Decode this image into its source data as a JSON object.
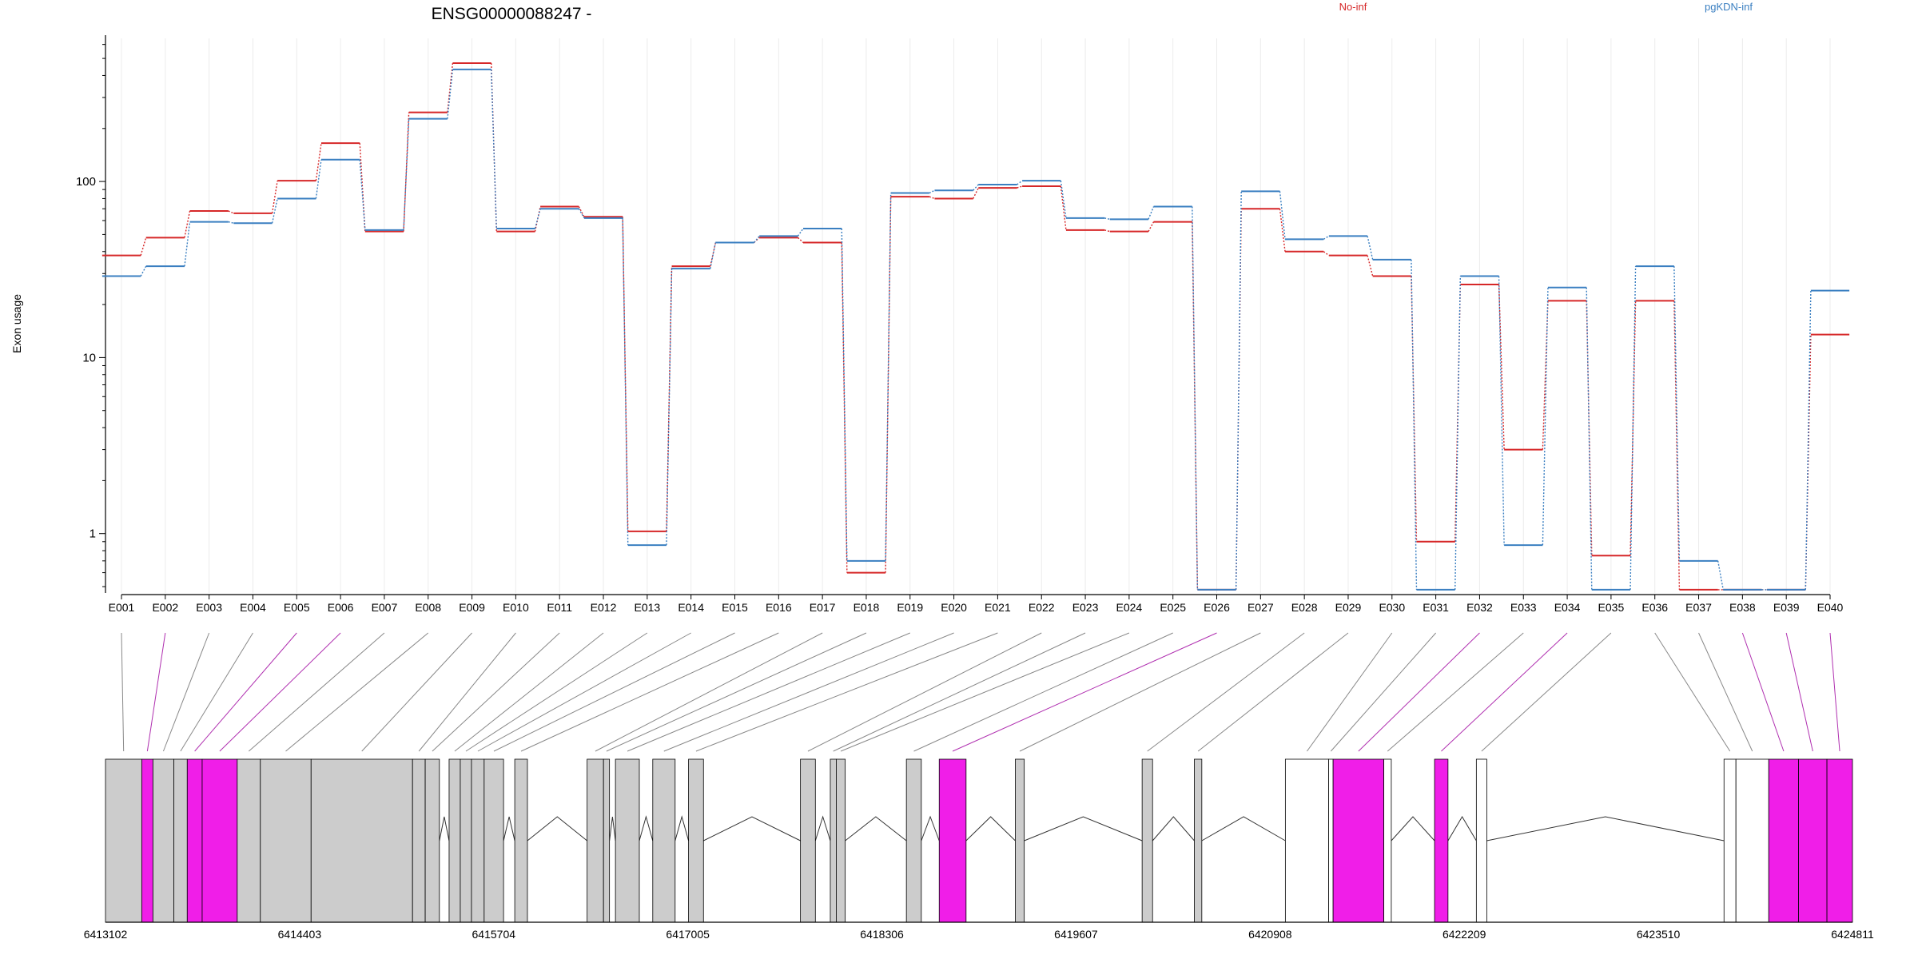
{
  "chart_data": {
    "type": "line",
    "title": "ENSG00000088247 -",
    "ylabel": "Exon usage",
    "xlabel": "",
    "yscale": "log",
    "ylim": [
      0.46,
      650
    ],
    "yticks": [
      1,
      10,
      100
    ],
    "grid": "vertical",
    "legend": "top",
    "categories": [
      "E001",
      "E002",
      "E003",
      "E004",
      "E005",
      "E006",
      "E007",
      "E008",
      "E009",
      "E010",
      "E011",
      "E012",
      "E013",
      "E014",
      "E015",
      "E016",
      "E017",
      "E018",
      "E019",
      "E020",
      "E021",
      "E022",
      "E023",
      "E024",
      "E025",
      "E026",
      "E027",
      "E028",
      "E029",
      "E030",
      "E031",
      "E032",
      "E033",
      "E034",
      "E035",
      "E036",
      "E037",
      "E038",
      "E039",
      "E040"
    ],
    "series": [
      {
        "name": "No-inf",
        "color": "#d62728",
        "values": [
          38,
          48,
          68,
          66,
          101,
          165,
          52,
          247,
          470,
          52,
          72,
          63,
          1.03,
          33,
          45,
          48,
          45,
          0.6,
          82,
          80,
          92,
          94,
          53,
          52,
          59,
          0.48,
          70,
          40,
          38,
          29,
          0.9,
          26,
          3.0,
          21,
          0.75,
          21,
          0.48,
          0.48,
          0.48,
          13.5
        ]
      },
      {
        "name": "pgKDN-inf",
        "color": "#3a7fc1",
        "values": [
          29,
          33,
          59,
          58,
          80,
          133,
          53,
          227,
          433,
          54,
          70,
          62,
          0.86,
          32,
          45,
          49,
          54,
          0.7,
          86,
          89,
          96,
          101,
          62,
          61,
          72,
          0.48,
          88,
          47,
          49,
          36,
          0.48,
          29,
          0.86,
          25,
          0.48,
          33,
          0.7,
          0.48,
          0.48,
          24
        ]
      }
    ],
    "gene_model": {
      "coordinate_ticks": [
        "6413102",
        "6414403",
        "6415704",
        "6417005",
        "6418306",
        "6419607",
        "6420908",
        "6422209",
        "6423510",
        "6424811"
      ],
      "coordinate_range": [
        6413102,
        6424811
      ],
      "exons": [
        {
          "id": "E001",
          "start": 6413102,
          "end": 6413345,
          "fill": "#cccccc"
        },
        {
          "id": "E002",
          "start": 6413345,
          "end": 6413420,
          "fill": "#f01ee8"
        },
        {
          "id": "E003",
          "start": 6413420,
          "end": 6413560,
          "fill": "#cccccc"
        },
        {
          "id": "E004",
          "start": 6413560,
          "end": 6413650,
          "fill": "#cccccc"
        },
        {
          "id": "E005",
          "start": 6413650,
          "end": 6413750,
          "fill": "#f01ee8"
        },
        {
          "id": "E006",
          "start": 6413750,
          "end": 6413985,
          "fill": "#f01ee8"
        },
        {
          "id": "E007",
          "start": 6413985,
          "end": 6414140,
          "fill": "#cccccc"
        },
        {
          "id": "E008",
          "start": 6414140,
          "end": 6414480,
          "fill": "#cccccc"
        },
        {
          "id": "E009",
          "start": 6414480,
          "end": 6415160,
          "fill": "#cccccc"
        },
        {
          "id": "E010",
          "start": 6415160,
          "end": 6415245,
          "fill": "#cccccc"
        },
        {
          "id": "E011",
          "start": 6415245,
          "end": 6415340,
          "fill": "#cccccc"
        },
        {
          "id": "E012",
          "start": 6415405,
          "end": 6415480,
          "fill": "#cccccc"
        },
        {
          "id": "E013",
          "start": 6415480,
          "end": 6415555,
          "fill": "#cccccc"
        },
        {
          "id": "E014",
          "start": 6415555,
          "end": 6415640,
          "fill": "#cccccc"
        },
        {
          "id": "E015",
          "start": 6415640,
          "end": 6415770,
          "fill": "#cccccc"
        },
        {
          "id": "E016",
          "start": 6415845,
          "end": 6415930,
          "fill": "#cccccc"
        },
        {
          "id": "E017",
          "start": 6416330,
          "end": 6416440,
          "fill": "#cccccc"
        },
        {
          "id": "E018",
          "start": 6416440,
          "end": 6416480,
          "fill": "#cccccc"
        },
        {
          "id": "E019",
          "start": 6416520,
          "end": 6416680,
          "fill": "#cccccc"
        },
        {
          "id": "E020",
          "start": 6416770,
          "end": 6416920,
          "fill": "#cccccc"
        },
        {
          "id": "E021",
          "start": 6417010,
          "end": 6417110,
          "fill": "#cccccc"
        },
        {
          "id": "E022",
          "start": 6417760,
          "end": 6417860,
          "fill": "#cccccc"
        },
        {
          "id": "E023",
          "start": 6417960,
          "end": 6418000,
          "fill": "#cccccc"
        },
        {
          "id": "E024",
          "start": 6418000,
          "end": 6418060,
          "fill": "#cccccc"
        },
        {
          "id": "E025",
          "start": 6418470,
          "end": 6418570,
          "fill": "#cccccc"
        },
        {
          "id": "E026",
          "start": 6418690,
          "end": 6418870,
          "fill": "#f01ee8"
        },
        {
          "id": "E027",
          "start": 6419200,
          "end": 6419260,
          "fill": "#cccccc"
        },
        {
          "id": "E028",
          "start": 6420050,
          "end": 6420120,
          "fill": "#cccccc"
        },
        {
          "id": "E029",
          "start": 6420400,
          "end": 6420450,
          "fill": "#cccccc"
        },
        {
          "id": "E030",
          "start": 6421010,
          "end": 6421300,
          "fill": "#ffffff"
        },
        {
          "id": "E031",
          "start": 6421300,
          "end": 6421330,
          "fill": "#ffffff"
        },
        {
          "id": "E032",
          "start": 6421330,
          "end": 6421670,
          "fill": "#f01ee8"
        },
        {
          "id": "E033",
          "start": 6421670,
          "end": 6421720,
          "fill": "#ffffff"
        },
        {
          "id": "E034",
          "start": 6422010,
          "end": 6422100,
          "fill": "#f01ee8"
        },
        {
          "id": "E035",
          "start": 6422290,
          "end": 6422360,
          "fill": "#ffffff"
        },
        {
          "id": "E036",
          "start": 6423950,
          "end": 6424030,
          "fill": "#ffffff"
        },
        {
          "id": "E037",
          "start": 6424030,
          "end": 6424250,
          "fill": "#ffffff"
        },
        {
          "id": "E038",
          "start": 6424250,
          "end": 6424450,
          "fill": "#f01ee8"
        },
        {
          "id": "E039",
          "start": 6424450,
          "end": 6424640,
          "fill": "#f01ee8"
        },
        {
          "id": "E040",
          "start": 6424640,
          "end": 6424811,
          "fill": "#f01ee8"
        }
      ]
    }
  }
}
